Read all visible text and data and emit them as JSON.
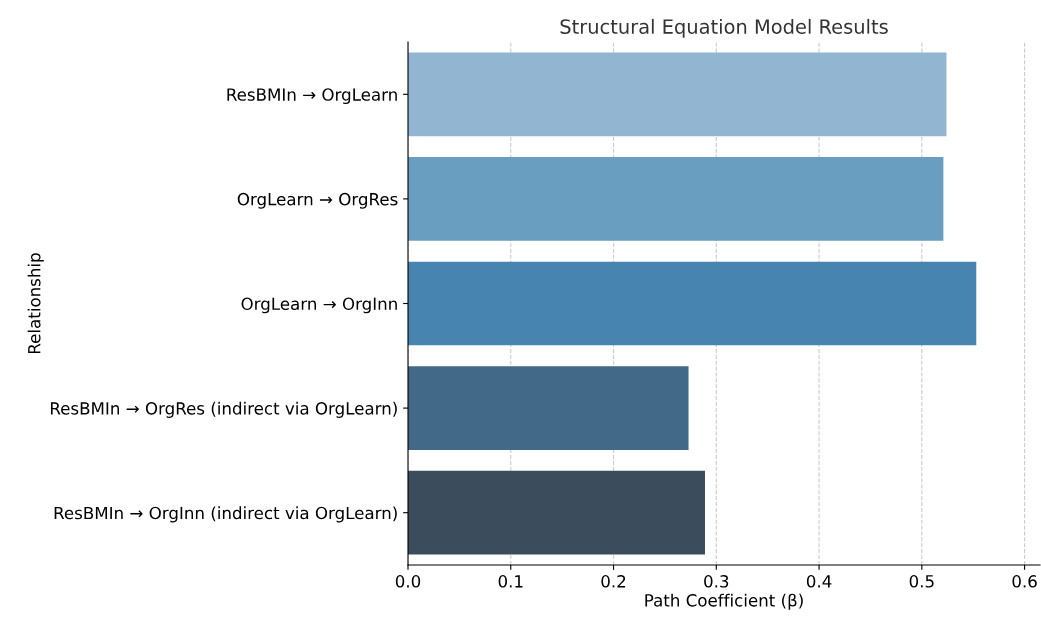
{
  "chart_data": {
    "type": "bar",
    "orientation": "horizontal",
    "title": "Structural Equation Model Results",
    "xlabel": "Path Coefficient (β)",
    "ylabel": "Relationship",
    "categories": [
      "ResBMIn → OrgLearn",
      "OrgLearn → OrgRes",
      "OrgLearn → OrgInn",
      "ResBMIn → OrgRes (indirect via OrgLearn)",
      "ResBMIn → OrgInn (indirect via OrgLearn)"
    ],
    "values": [
      0.524,
      0.521,
      0.553,
      0.273,
      0.289
    ],
    "colors": [
      "#92b6d1",
      "#6a9ec0",
      "#4884b0",
      "#426987",
      "#3b4d5c"
    ],
    "xlim": [
      0,
      0.615
    ],
    "xticks": [
      {
        "value": 0,
        "label": "0.0"
      },
      0.1,
      0.2,
      0.3,
      0.4,
      0.5,
      0.6
    ],
    "grid": "x"
  }
}
